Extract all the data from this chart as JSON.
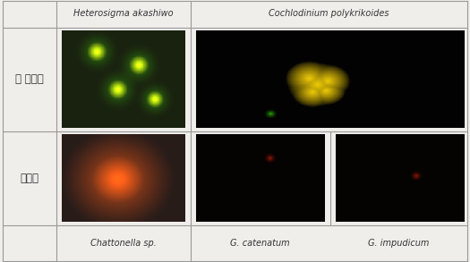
{
  "title_left": "Heterosigma akashiwo",
  "title_right": "Cochlodinium polykrikoides",
  "row_labels": [
    "종 특이성",
    "근연종"
  ],
  "col_labels_bottom": [
    "Chattonella sp.",
    "G. catenatum",
    "G. impudicum"
  ],
  "bg_color": "#f0eeeb",
  "border_color": "#999999",
  "label_font_size": 7.5,
  "row_label_font_size": 8.5
}
